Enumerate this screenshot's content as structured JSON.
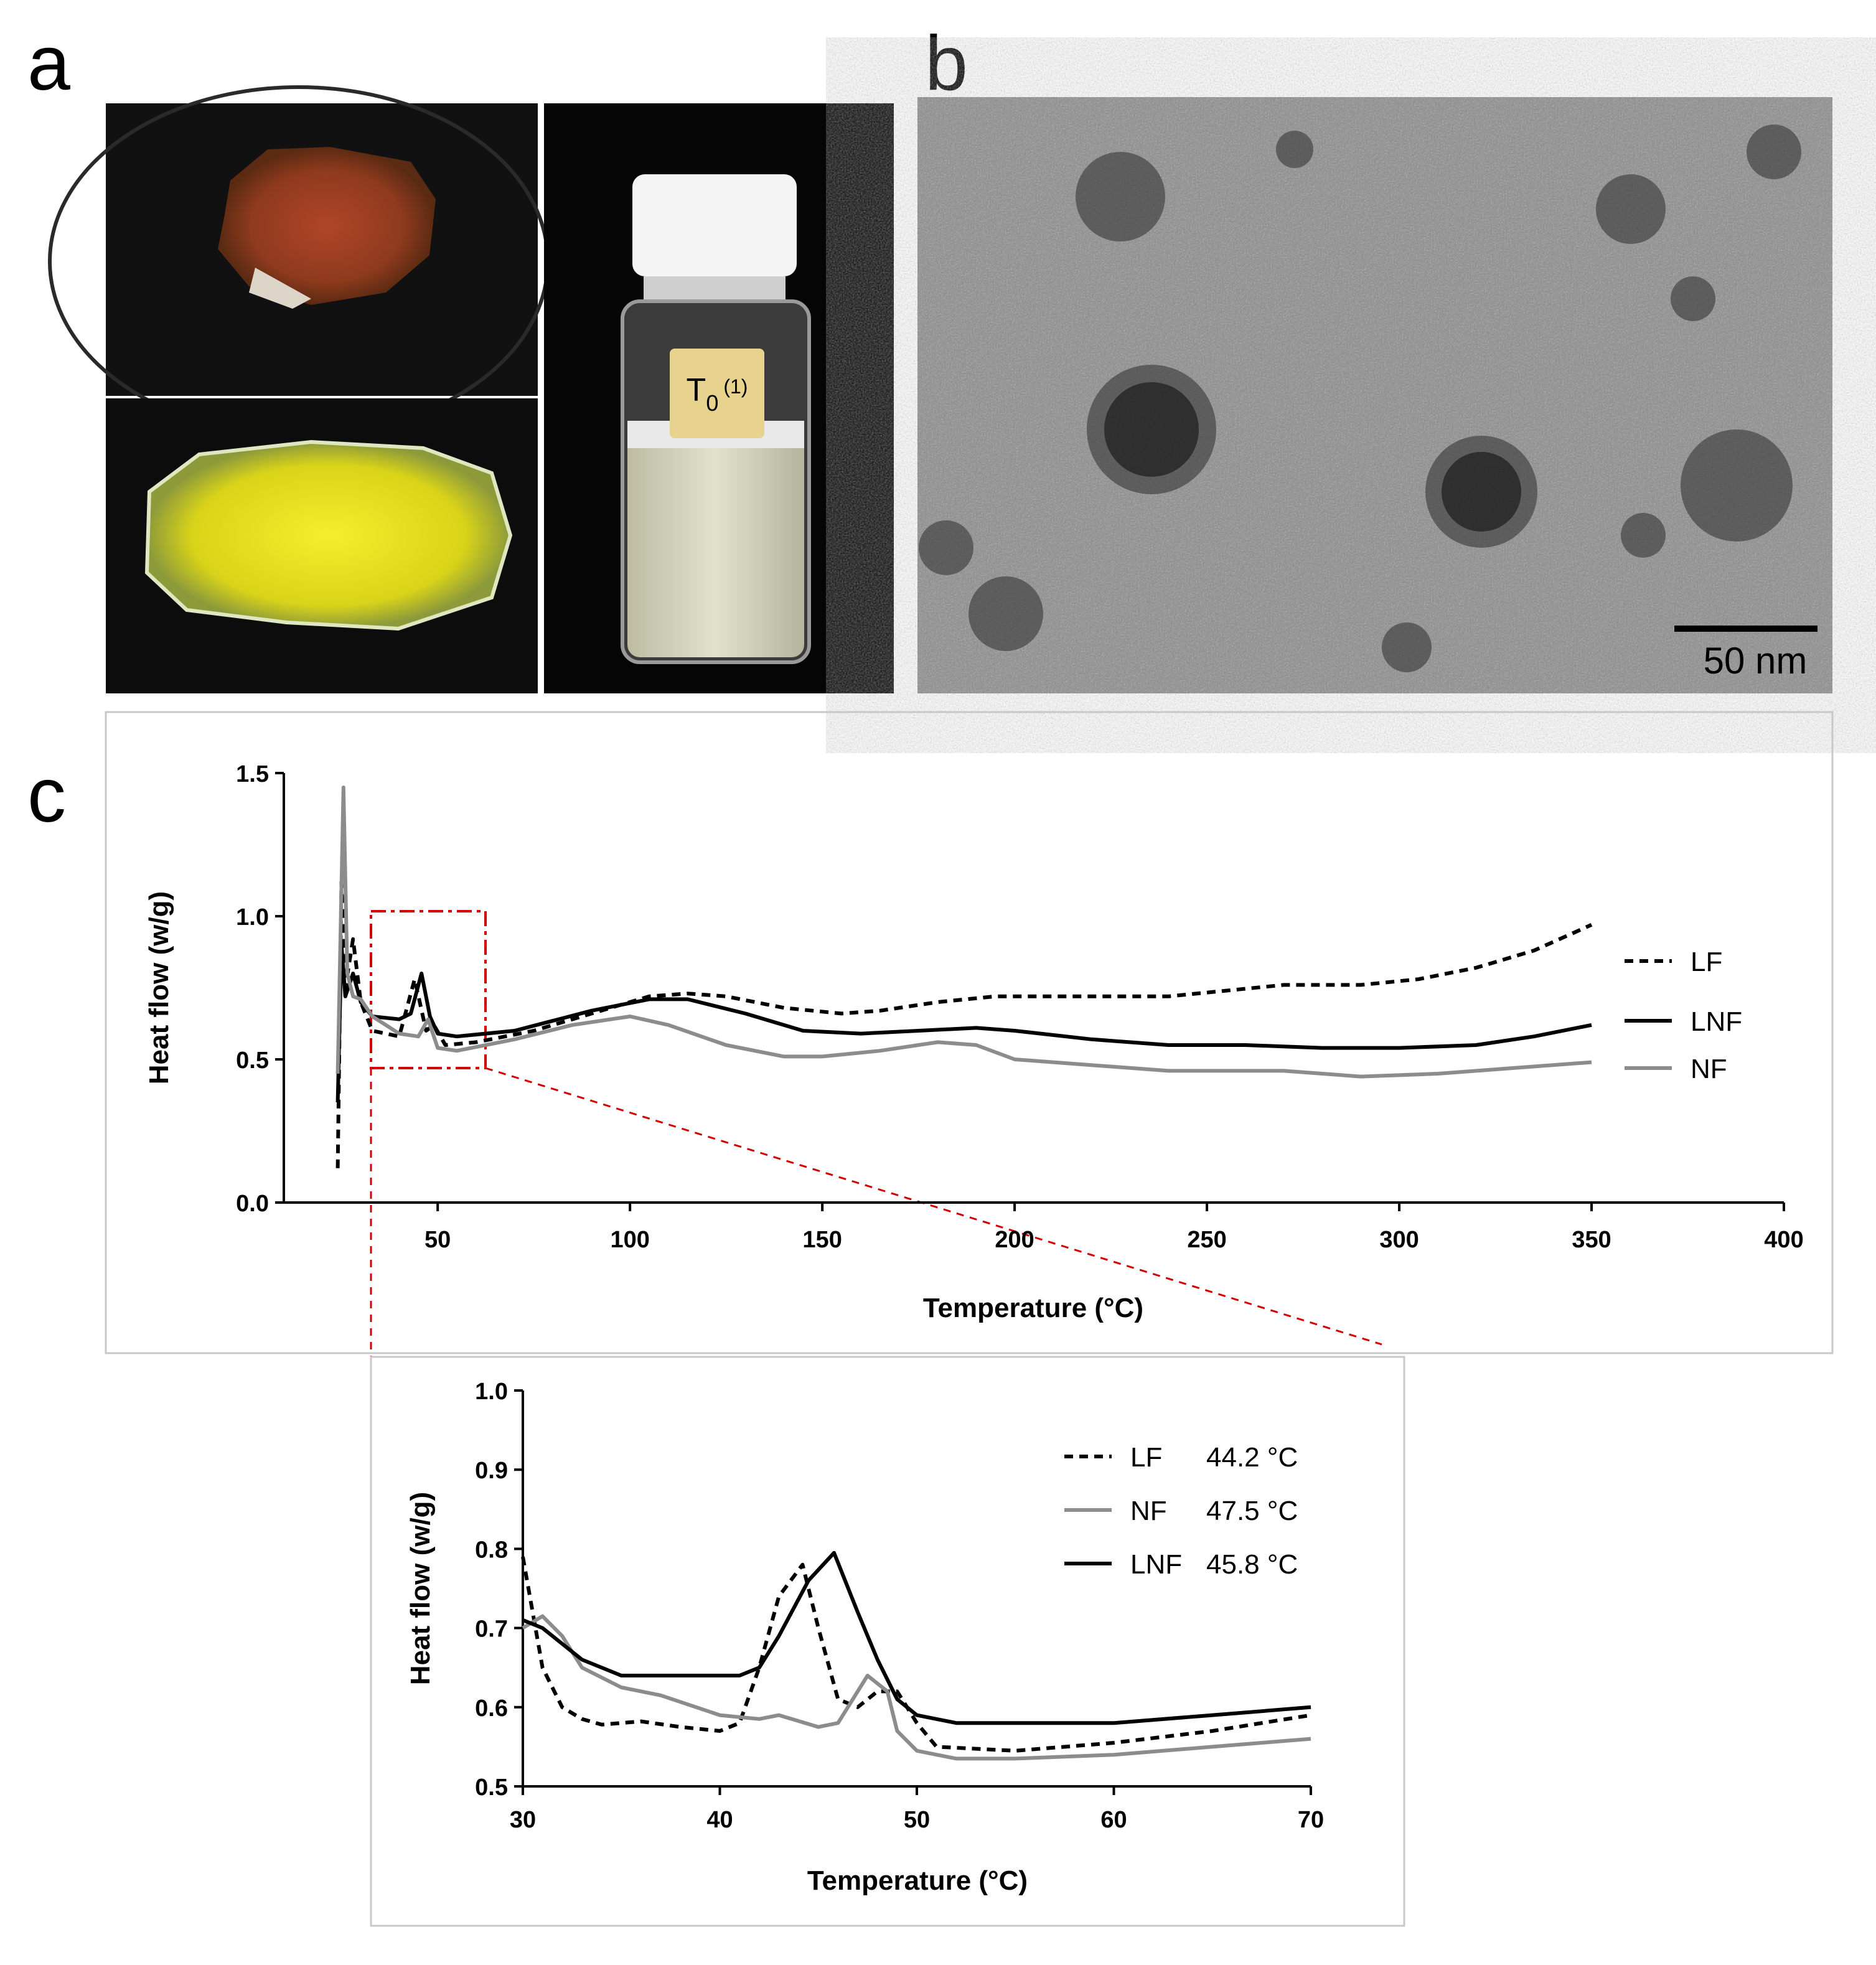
{
  "panel_labels": [
    "a",
    "b",
    "c"
  ],
  "vial_label": {
    "main": "T",
    "sub": "0",
    "suffix": "(1)"
  },
  "scale_bar": "50 nm",
  "chart_data": [
    {
      "type": "line",
      "x_label": "Temperature (°C)",
      "y_label": "Heat flow (w/g)",
      "xlim": [
        10,
        400
      ],
      "xticks": [
        50,
        100,
        150,
        200,
        250,
        300,
        350,
        400
      ],
      "ylim": [
        0,
        1.5
      ],
      "yticks": [
        {
          "value": 0,
          "label": "0.0"
        },
        0.5,
        {
          "value": 1,
          "label": "1.0"
        },
        1.5
      ],
      "grid": false,
      "series": [
        {
          "name": "LF",
          "color": "#000000",
          "line_style": "dashed",
          "x": [
            24,
            25,
            26,
            28,
            30,
            33,
            40,
            44,
            47,
            49,
            52,
            60,
            75,
            90,
            105,
            115,
            125,
            140,
            155,
            165,
            180,
            195,
            215,
            240,
            255,
            270,
            290,
            305,
            320,
            335,
            350
          ],
          "values": [
            0.12,
            1.12,
            0.75,
            0.92,
            0.7,
            0.6,
            0.58,
            0.78,
            0.6,
            0.62,
            0.55,
            0.56,
            0.6,
            0.66,
            0.72,
            0.73,
            0.72,
            0.68,
            0.66,
            0.67,
            0.7,
            0.72,
            0.72,
            0.72,
            0.74,
            0.76,
            0.76,
            0.78,
            0.82,
            0.88,
            0.97
          ]
        },
        {
          "name": "LNF",
          "color": "#000000",
          "line_style": "solid",
          "x": [
            24,
            25,
            26,
            28,
            30,
            33,
            40,
            43,
            45.8,
            48,
            50,
            55,
            70,
            90,
            105,
            115,
            130,
            145,
            160,
            175,
            190,
            200,
            220,
            240,
            260,
            280,
            300,
            320,
            335,
            350
          ],
          "values": [
            0.35,
            0.9,
            0.72,
            0.8,
            0.7,
            0.65,
            0.64,
            0.66,
            0.8,
            0.65,
            0.59,
            0.58,
            0.6,
            0.67,
            0.71,
            0.71,
            0.66,
            0.6,
            0.59,
            0.6,
            0.61,
            0.6,
            0.57,
            0.55,
            0.55,
            0.54,
            0.54,
            0.55,
            0.58,
            0.62
          ]
        },
        {
          "name": "NF",
          "color": "#8c8c8c",
          "line_style": "solid",
          "x": [
            24,
            25.5,
            26.5,
            28,
            30,
            33,
            40,
            45,
            47.5,
            50,
            55,
            70,
            85,
            100,
            110,
            125,
            140,
            150,
            165,
            180,
            190,
            200,
            220,
            240,
            270,
            290,
            310,
            330,
            350
          ],
          "values": [
            0.45,
            1.45,
            0.8,
            0.72,
            0.71,
            0.65,
            0.59,
            0.58,
            0.64,
            0.54,
            0.53,
            0.57,
            0.62,
            0.65,
            0.62,
            0.55,
            0.51,
            0.51,
            0.53,
            0.56,
            0.55,
            0.5,
            0.48,
            0.46,
            0.46,
            0.44,
            0.45,
            0.47,
            0.49
          ]
        }
      ]
    },
    {
      "type": "line",
      "x_label": "Temperature (°C)",
      "y_label": "Heat flow (w/g)",
      "xlim": [
        30,
        70
      ],
      "xticks": [
        30,
        40,
        50,
        60,
        70
      ],
      "ylim": [
        0.5,
        1
      ],
      "yticks": [
        0.5,
        0.6,
        0.7,
        0.8,
        0.9,
        {
          "value": 1,
          "label": "1.0"
        }
      ],
      "grid": false,
      "series": [
        {
          "name": "LF",
          "peak_label": "44.2 °C",
          "color": "#000000",
          "line_style": "dashed",
          "x": [
            30,
            31,
            32,
            33,
            34,
            35,
            36,
            38,
            40,
            41,
            42,
            43,
            44.2,
            45,
            46,
            47,
            48,
            49,
            50,
            51,
            55,
            60,
            65,
            70
          ],
          "values": [
            0.79,
            0.65,
            0.6,
            0.585,
            0.578,
            0.58,
            0.582,
            0.575,
            0.57,
            0.58,
            0.65,
            0.74,
            0.78,
            0.7,
            0.61,
            0.6,
            0.62,
            0.62,
            0.58,
            0.55,
            0.545,
            0.555,
            0.57,
            0.59
          ]
        },
        {
          "name": "NF",
          "peak_label": "47.5 °C",
          "color": "#8c8c8c",
          "line_style": "solid",
          "x": [
            30,
            31,
            32,
            33,
            35,
            37,
            40,
            42,
            43,
            45,
            46,
            47.5,
            48.5,
            49,
            50,
            52,
            55,
            60,
            65,
            70
          ],
          "values": [
            0.7,
            0.715,
            0.69,
            0.65,
            0.625,
            0.615,
            0.59,
            0.585,
            0.59,
            0.575,
            0.58,
            0.64,
            0.62,
            0.57,
            0.545,
            0.535,
            0.535,
            0.54,
            0.55,
            0.56
          ]
        },
        {
          "name": "LNF",
          "peak_label": "45.8 °C",
          "color": "#000000",
          "line_style": "solid",
          "x": [
            30,
            31,
            33,
            35,
            38,
            41,
            42,
            43,
            44.5,
            45.8,
            47,
            48,
            49,
            50,
            52,
            60,
            65,
            70
          ],
          "values": [
            0.71,
            0.7,
            0.66,
            0.64,
            0.64,
            0.64,
            0.65,
            0.69,
            0.76,
            0.795,
            0.72,
            0.66,
            0.61,
            0.59,
            0.58,
            0.58,
            0.59,
            0.6
          ]
        }
      ]
    }
  ]
}
